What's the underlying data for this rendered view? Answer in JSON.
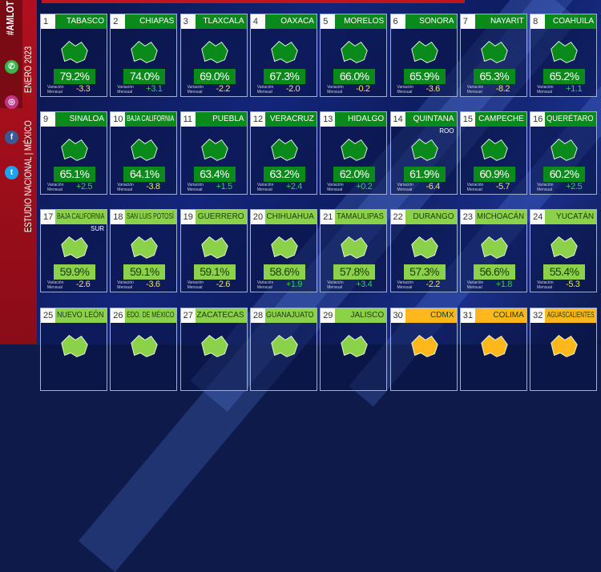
{
  "sidebar": {
    "hashtag": "#AMLOT",
    "date": "ENERO 2023",
    "study": "ESTUDIO NACIONAL | MÉXICO",
    "social_icons": [
      "whatsapp-icon",
      "instagram-icon",
      "facebook-icon",
      "twitter-icon"
    ]
  },
  "variation_label": "Variación Mensual",
  "colors": {
    "dark_green": "#0a8a1a",
    "light_green": "#8cd14a",
    "gold": "#ffb81c",
    "positive": "#2fd04a",
    "negative": "#f2e24a"
  },
  "states": [
    {
      "rank": "1",
      "name": "TABASCO",
      "pct": "79.2%",
      "var": "-3.3",
      "tier": "dark"
    },
    {
      "rank": "2",
      "name": "CHIAPAS",
      "pct": "74.0%",
      "var": "+3.1",
      "tier": "dark"
    },
    {
      "rank": "3",
      "name": "TLAXCALA",
      "pct": "69.0%",
      "var": "-2.2",
      "tier": "dark"
    },
    {
      "rank": "4",
      "name": "OAXACA",
      "pct": "67.3%",
      "var": "-2.0",
      "tier": "dark"
    },
    {
      "rank": "5",
      "name": "MORELOS",
      "pct": "66.0%",
      "var": "-0.2",
      "tier": "dark"
    },
    {
      "rank": "6",
      "name": "SONORA",
      "pct": "65.9%",
      "var": "-3.6",
      "tier": "dark"
    },
    {
      "rank": "7",
      "name": "NAYARIT",
      "pct": "65.3%",
      "var": "-8.2",
      "tier": "dark"
    },
    {
      "rank": "8",
      "name": "COAHUILA",
      "pct": "65.2%",
      "var": "+1.1",
      "tier": "dark"
    },
    {
      "rank": "9",
      "name": "SINALOA",
      "pct": "65.1%",
      "var": "+2.5",
      "tier": "dark"
    },
    {
      "rank": "10",
      "name": "BAJA CALIFORNIA",
      "pct": "64.1%",
      "var": "-3.8",
      "tier": "dark"
    },
    {
      "rank": "11",
      "name": "PUEBLA",
      "pct": "63.4%",
      "var": "+1.5",
      "tier": "dark"
    },
    {
      "rank": "12",
      "name": "VERACRUZ",
      "pct": "63.2%",
      "var": "+2.4",
      "tier": "dark"
    },
    {
      "rank": "13",
      "name": "HIDALGO",
      "pct": "62.0%",
      "var": "+0.2",
      "tier": "dark"
    },
    {
      "rank": "14",
      "name": "QUINTANA",
      "sub": "ROO",
      "pct": "61.9%",
      "var": "-6.4",
      "tier": "dark"
    },
    {
      "rank": "15",
      "name": "CAMPECHE",
      "pct": "60.9%",
      "var": "-5.7",
      "tier": "dark"
    },
    {
      "rank": "16",
      "name": "QUERÉTARO",
      "pct": "60.2%",
      "var": "+2.5",
      "tier": "dark"
    },
    {
      "rank": "17",
      "name": "BAJA CALIFORNIA",
      "sub": "SUR",
      "pct": "59.9%",
      "var": "-2.6",
      "tier": "light"
    },
    {
      "rank": "18",
      "name": "SAN LUIS POTOSÍ",
      "pct": "59.1%",
      "var": "-3.6",
      "tier": "light"
    },
    {
      "rank": "19",
      "name": "GUERRERO",
      "pct": "59.1%",
      "var": "-2.6",
      "tier": "light"
    },
    {
      "rank": "20",
      "name": "CHIHUAHUA",
      "pct": "58.6%",
      "var": "+1.9",
      "tier": "light"
    },
    {
      "rank": "21",
      "name": "TAMAULIPAS",
      "pct": "57.8%",
      "var": "+3.4",
      "tier": "light"
    },
    {
      "rank": "22",
      "name": "DURANGO",
      "pct": "57.3%",
      "var": "-2.2",
      "tier": "light"
    },
    {
      "rank": "23",
      "name": "MICHOACÁN",
      "pct": "56.6%",
      "var": "+1.8",
      "tier": "light"
    },
    {
      "rank": "24",
      "name": "YUCATÁN",
      "pct": "55.4%",
      "var": "-5.3",
      "tier": "light"
    },
    {
      "rank": "25",
      "name": "NUEVO LEÓN",
      "tier": "light"
    },
    {
      "rank": "26",
      "name": "EDO. DE MÉXICO",
      "tier": "light"
    },
    {
      "rank": "27",
      "name": "ZACATECAS",
      "tier": "light"
    },
    {
      "rank": "28",
      "name": "GUANAJUATO",
      "tier": "light"
    },
    {
      "rank": "29",
      "name": "JALISCO",
      "tier": "light"
    },
    {
      "rank": "30",
      "name": "CDMX",
      "tier": "gold"
    },
    {
      "rank": "31",
      "name": "COLIMA",
      "tier": "gold"
    },
    {
      "rank": "32",
      "name": "AGUASCALIENTES",
      "tier": "gold"
    }
  ]
}
